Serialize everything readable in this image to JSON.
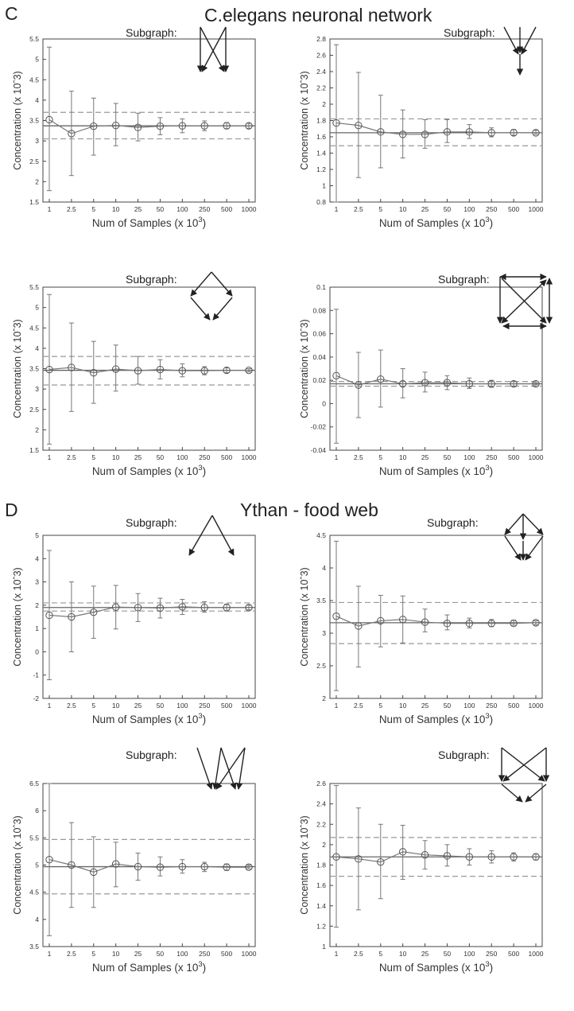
{
  "sections": [
    {
      "letter": "C",
      "title": "C.elegans neuronal network"
    },
    {
      "letter": "D",
      "title": "Ythan - food web"
    }
  ],
  "chart_data": [
    {
      "type": "line",
      "section": "C",
      "subgraph_label": "Subgraph:",
      "motif": "motif-c1-icon",
      "ylabel": "Concentration (x 10ˆ3)",
      "xlabel_text": "Num of Samples (x 10",
      "xlabel_sup": "3",
      "xlabel_close": ")",
      "categories": [
        "1",
        "2.5",
        "5",
        "10",
        "25",
        "50",
        "100",
        "250",
        "500",
        "1000"
      ],
      "ylim": [
        1.5,
        5.5
      ],
      "yticks": [
        "1.5",
        "2",
        "2.5",
        "3",
        "3.5",
        "4",
        "4.5",
        "5",
        "5.5"
      ],
      "values": [
        3.52,
        3.18,
        3.36,
        3.38,
        3.33,
        3.36,
        3.37,
        3.37,
        3.37,
        3.37
      ],
      "err_low": [
        1.78,
        2.15,
        2.65,
        2.88,
        3.0,
        3.15,
        3.2,
        3.25,
        3.3,
        3.31
      ],
      "err_high": [
        5.3,
        4.22,
        4.05,
        3.92,
        3.68,
        3.57,
        3.54,
        3.49,
        3.45,
        3.43
      ],
      "reference": 3.37,
      "band": [
        3.05,
        3.7
      ]
    },
    {
      "type": "line",
      "section": "C",
      "subgraph_label": "Subgraph:",
      "motif": "motif-c2-icon",
      "ylabel": "Concentration (x 10ˆ3)",
      "xlabel_text": "Num of Samples (x 10",
      "xlabel_sup": "3",
      "xlabel_close": ")",
      "categories": [
        "1",
        "2.5",
        "5",
        "10",
        "25",
        "50",
        "100",
        "250",
        "500",
        "1000"
      ],
      "ylim": [
        0.8,
        2.8
      ],
      "yticks": [
        "0.8",
        "1",
        "1.2",
        "1.4",
        "1.6",
        "1.8",
        "2",
        "2.2",
        "2.4",
        "2.6",
        "2.8"
      ],
      "values": [
        1.77,
        1.74,
        1.66,
        1.63,
        1.63,
        1.66,
        1.66,
        1.65,
        1.65,
        1.65
      ],
      "err_low": [
        0.8,
        1.1,
        1.22,
        1.34,
        1.46,
        1.53,
        1.58,
        1.6,
        1.62,
        1.63
      ],
      "err_high": [
        2.73,
        2.39,
        2.11,
        1.93,
        1.81,
        1.81,
        1.75,
        1.71,
        1.69,
        1.68
      ],
      "reference": 1.65,
      "band": [
        1.49,
        1.82
      ]
    },
    {
      "type": "line",
      "section": "C",
      "subgraph_label": "Subgraph:",
      "motif": "motif-c3-icon",
      "ylabel": "Concentration (x 10ˆ3)",
      "xlabel_text": "Num of Samples (x 10",
      "xlabel_sup": "3",
      "xlabel_close": ")",
      "categories": [
        "1",
        "2.5",
        "5",
        "10",
        "25",
        "50",
        "100",
        "250",
        "500",
        "1000"
      ],
      "ylim": [
        1.5,
        5.5
      ],
      "yticks": [
        "1.5",
        "2",
        "2.5",
        "3",
        "3.5",
        "4",
        "4.5",
        "5",
        "5.5"
      ],
      "values": [
        3.48,
        3.53,
        3.4,
        3.49,
        3.45,
        3.48,
        3.45,
        3.45,
        3.46,
        3.46
      ],
      "err_low": [
        1.65,
        2.45,
        2.65,
        2.95,
        3.12,
        3.25,
        3.3,
        3.35,
        3.4,
        3.42
      ],
      "err_high": [
        5.32,
        4.62,
        4.17,
        4.08,
        3.8,
        3.72,
        3.62,
        3.55,
        3.52,
        3.5
      ],
      "reference": 3.46,
      "band": [
        3.1,
        3.8
      ]
    },
    {
      "type": "line",
      "section": "C",
      "subgraph_label": "Subgraph:",
      "motif": "motif-c4-icon",
      "ylabel": "Concentration (x 10ˆ3)",
      "xlabel_text": "Num of Samples (x 10",
      "xlabel_sup": "3",
      "xlabel_close": ")",
      "categories": [
        "1",
        "2.5",
        "5",
        "10",
        "25",
        "50",
        "100",
        "250",
        "500",
        "1000"
      ],
      "ylim": [
        -0.04,
        0.1
      ],
      "yticks": [
        "-0.04",
        "-0.02",
        "0",
        "0.02",
        "0.04",
        "0.06",
        "0.08",
        "0.1"
      ],
      "values": [
        0.024,
        0.016,
        0.021,
        0.017,
        0.018,
        0.018,
        0.017,
        0.017,
        0.017,
        0.017
      ],
      "err_low": [
        -0.034,
        -0.012,
        -0.003,
        0.005,
        0.01,
        0.012,
        0.013,
        0.014,
        0.015,
        0.016
      ],
      "err_high": [
        0.081,
        0.044,
        0.046,
        0.03,
        0.027,
        0.024,
        0.022,
        0.02,
        0.019,
        0.018
      ],
      "reference": 0.017,
      "band": [
        0.015,
        0.019
      ]
    },
    {
      "type": "line",
      "section": "D",
      "subgraph_label": "Subgraph:",
      "motif": "motif-d1-icon",
      "ylabel": "Concentration (x 10ˆ3)",
      "xlabel_text": "Num of Samples (x 10",
      "xlabel_sup": "3",
      "xlabel_close": ")",
      "categories": [
        "1",
        "2.5",
        "5",
        "10",
        "25",
        "50",
        "100",
        "250",
        "500",
        "1000"
      ],
      "ylim": [
        -2,
        5
      ],
      "yticks": [
        "-2",
        "-1",
        "0",
        "1",
        "2",
        "3",
        "4",
        "5"
      ],
      "values": [
        1.57,
        1.5,
        1.7,
        1.92,
        1.9,
        1.88,
        1.93,
        1.9,
        1.9,
        1.9
      ],
      "err_low": [
        -1.2,
        0.0,
        0.58,
        0.98,
        1.3,
        1.45,
        1.6,
        1.7,
        1.75,
        1.8
      ],
      "err_high": [
        4.35,
        3.0,
        2.82,
        2.85,
        2.5,
        2.3,
        2.25,
        2.15,
        2.05,
        2.0
      ],
      "reference": 1.9,
      "band": [
        1.75,
        2.1
      ]
    },
    {
      "type": "line",
      "section": "D",
      "subgraph_label": "Subgraph:",
      "motif": "motif-d2-icon",
      "ylabel": "Concentration (x 10ˆ3)",
      "xlabel_text": "Num of Samples (x 10",
      "xlabel_sup": "3",
      "xlabel_close": ")",
      "categories": [
        "1",
        "2.5",
        "5",
        "10",
        "25",
        "50",
        "100",
        "250",
        "500",
        "1000"
      ],
      "ylim": [
        2,
        4.5
      ],
      "yticks": [
        "2",
        "2.5",
        "3",
        "3.5",
        "4",
        "4.5"
      ],
      "values": [
        3.26,
        3.11,
        3.19,
        3.21,
        3.17,
        3.15,
        3.15,
        3.15,
        3.15,
        3.16
      ],
      "err_low": [
        2.12,
        2.48,
        2.79,
        2.85,
        3.02,
        3.05,
        3.08,
        3.1,
        3.12,
        3.13
      ],
      "err_high": [
        4.41,
        3.72,
        3.58,
        3.57,
        3.37,
        3.28,
        3.23,
        3.21,
        3.2,
        3.19
      ],
      "reference": 3.16,
      "band": [
        2.84,
        3.47
      ]
    },
    {
      "type": "line",
      "section": "D",
      "subgraph_label": "Subgraph:",
      "motif": "motif-d3-icon",
      "ylabel": "Concentration (x 10ˆ3)",
      "xlabel_text": "Num of Samples (x 10",
      "xlabel_sup": "3",
      "xlabel_close": ")",
      "categories": [
        "1",
        "2.5",
        "5",
        "10",
        "25",
        "50",
        "100",
        "250",
        "500",
        "1000"
      ],
      "ylim": [
        3.5,
        6.5
      ],
      "yticks": [
        "3.5",
        "4",
        "4.5",
        "5",
        "5.5",
        "6",
        "6.5"
      ],
      "values": [
        5.1,
        5.0,
        4.87,
        5.02,
        4.97,
        4.96,
        4.97,
        4.97,
        4.96,
        4.96
      ],
      "err_low": [
        3.7,
        4.22,
        4.22,
        4.6,
        4.72,
        4.8,
        4.85,
        4.88,
        4.9,
        4.93
      ],
      "err_high": [
        6.5,
        5.78,
        5.52,
        5.42,
        5.22,
        5.15,
        5.1,
        5.05,
        5.02,
        5.0
      ],
      "reference": 4.97,
      "band": [
        4.47,
        5.47
      ]
    },
    {
      "type": "line",
      "section": "D",
      "subgraph_label": "Subgraph:",
      "motif": "motif-d4-icon",
      "ylabel": "Concentration (x 10ˆ3)",
      "xlabel_text": "Num of Samples (x 10",
      "xlabel_sup": "3",
      "xlabel_close": ")",
      "categories": [
        "1",
        "2.5",
        "5",
        "10",
        "25",
        "50",
        "100",
        "250",
        "500",
        "1000"
      ],
      "ylim": [
        1,
        2.6
      ],
      "yticks": [
        "1",
        "1.2",
        "1.4",
        "1.6",
        "1.8",
        "2",
        "2.2",
        "2.4",
        "2.6"
      ],
      "values": [
        1.88,
        1.86,
        1.83,
        1.93,
        1.9,
        1.89,
        1.88,
        1.88,
        1.88,
        1.88
      ],
      "err_low": [
        1.19,
        1.36,
        1.47,
        1.66,
        1.76,
        1.79,
        1.8,
        1.82,
        1.84,
        1.85
      ],
      "err_high": [
        2.58,
        2.36,
        2.2,
        2.19,
        2.04,
        2.0,
        1.96,
        1.94,
        1.92,
        1.91
      ],
      "reference": 1.88,
      "band": [
        1.69,
        2.07
      ]
    }
  ]
}
